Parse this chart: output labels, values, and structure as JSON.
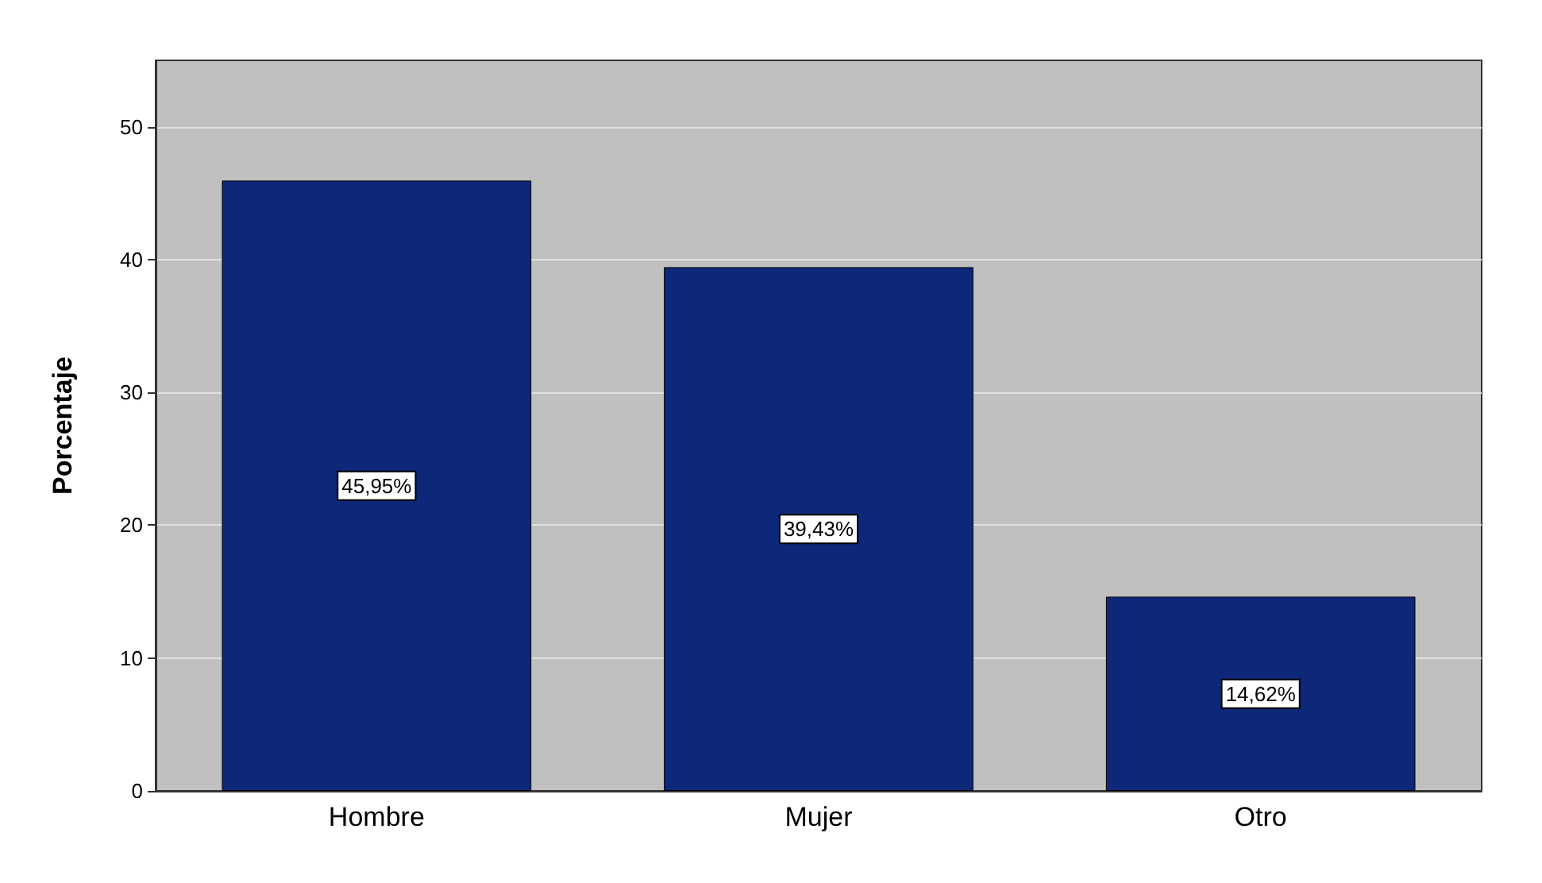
{
  "chart_data": {
    "type": "bar",
    "ylabel": "Porcentaje",
    "categories": [
      "Hombre",
      "Mujer",
      "Otro"
    ],
    "series": [
      {
        "color": "#0d2878",
        "values": [
          45.95,
          39.43,
          14.62
        ],
        "value_labels": [
          "45,95%",
          "39,43%",
          "14,62%"
        ]
      }
    ],
    "ylim": [
      0,
      55
    ],
    "yticks": [
      0,
      10,
      20,
      30,
      40,
      50
    ],
    "grid": "y"
  }
}
